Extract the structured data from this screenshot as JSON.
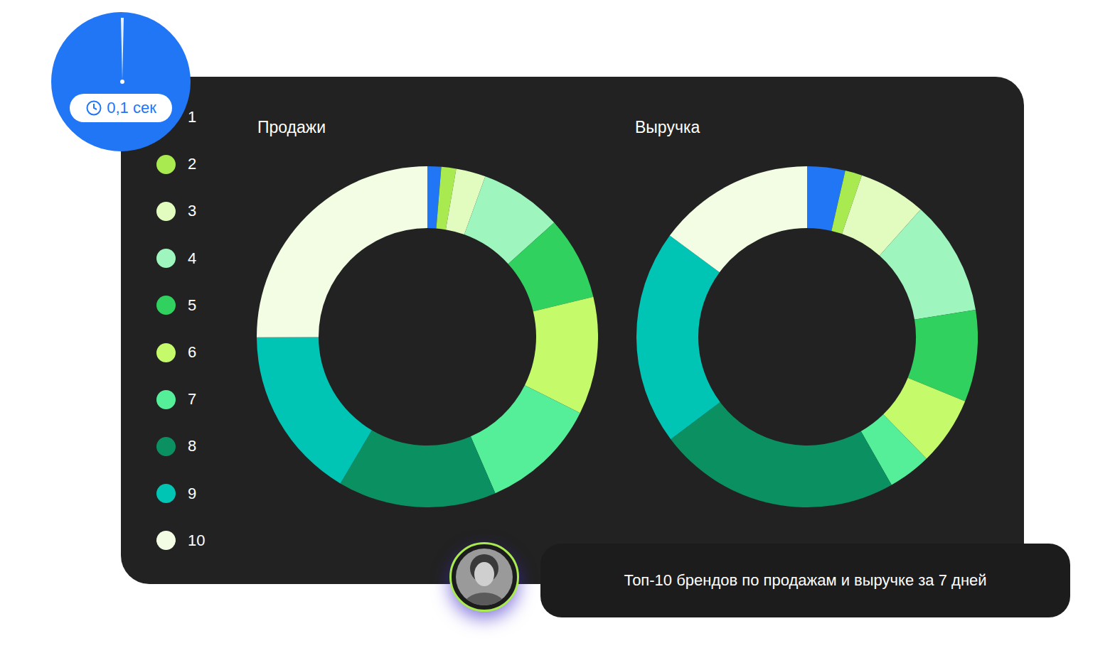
{
  "chart_data": [
    {
      "type": "pie",
      "title": "Продажи",
      "categories": [
        "1",
        "2",
        "3",
        "4",
        "5",
        "6",
        "7",
        "8",
        "9",
        "10"
      ],
      "values": [
        1.3,
        1.4,
        2.8,
        7.8,
        7.9,
        11.1,
        11.1,
        15,
        16.4,
        25
      ],
      "colors": [
        "#2176f5",
        "#a8ea4f",
        "#e2fcc0",
        "#9ef5bd",
        "#30d15f",
        "#c5fb6b",
        "#55ef9a",
        "#0b9161",
        "#00c5b5",
        "#f2fde4"
      ],
      "legend": "left"
    },
    {
      "type": "pie",
      "title": "Выручка",
      "categories": [
        "1",
        "2",
        "3",
        "4",
        "5",
        "6",
        "7",
        "8",
        "9",
        "10"
      ],
      "values": [
        3.6,
        1.6,
        6.4,
        10.9,
        8.7,
        6.5,
        4.1,
        23,
        20.4,
        14.9
      ],
      "colors": [
        "#2176f5",
        "#a8ea4f",
        "#e2fcc0",
        "#9ef5bd",
        "#30d15f",
        "#c5fb6b",
        "#55ef9a",
        "#0b9161",
        "#00c5b5",
        "#f2fde4"
      ]
    }
  ],
  "badge": "0,1 сек",
  "message": "Топ-10 брендов по продажам и выручке за 7 дней"
}
